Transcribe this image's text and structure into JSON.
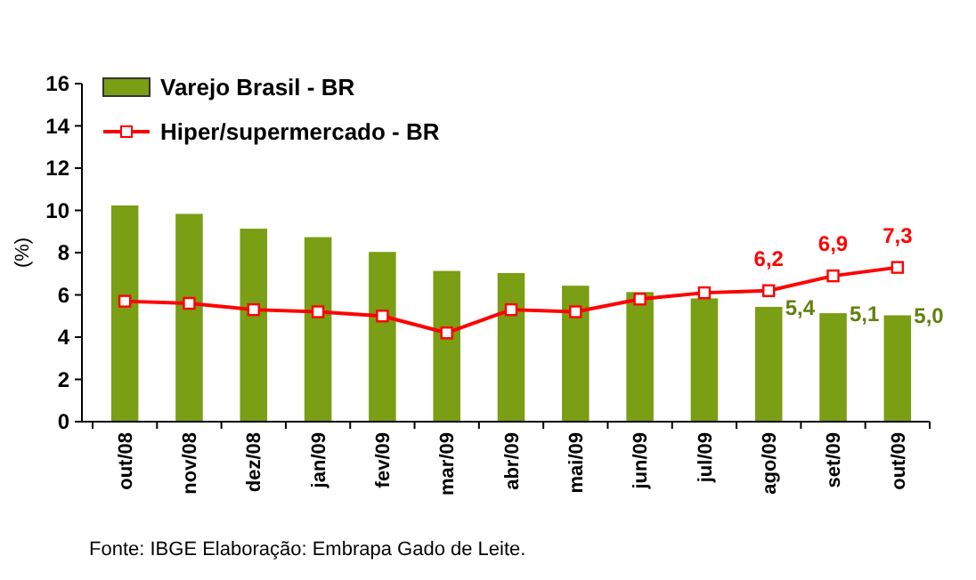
{
  "chart_data": {
    "type": "bar",
    "ylabel": "(%)",
    "categories": [
      "out/08",
      "nov/08",
      "dez/08",
      "jan/09",
      "fev/09",
      "mar/09",
      "abr/09",
      "mai/09",
      "jun/09",
      "jul/09",
      "ago/09",
      "set/09",
      "out/09"
    ],
    "series": [
      {
        "name": "Varejo Brasil - BR",
        "color": "#7a9e14",
        "values": [
          10.2,
          9.8,
          9.1,
          8.7,
          8.0,
          7.1,
          7.0,
          6.4,
          6.1,
          5.8,
          5.4,
          5.1,
          5.0
        ],
        "value_labels": [
          null,
          null,
          null,
          null,
          null,
          null,
          null,
          null,
          null,
          null,
          "5,4",
          "5,1",
          "5,0"
        ]
      },
      {
        "name": "Hiper/supermercado - BR",
        "type": "line",
        "color": "#ff0000",
        "marker": "square",
        "values": [
          5.7,
          5.6,
          5.3,
          5.2,
          5.0,
          4.2,
          5.3,
          5.2,
          5.8,
          6.1,
          6.2,
          6.9,
          7.3
        ],
        "value_labels": [
          null,
          null,
          null,
          null,
          null,
          null,
          null,
          null,
          null,
          null,
          "6,2",
          "6,9",
          "7,3"
        ]
      }
    ],
    "ylim": [
      0,
      16
    ],
    "yticks": [
      0,
      2,
      4,
      6,
      8,
      10,
      12,
      14,
      16
    ],
    "legend": "top left",
    "grid": false,
    "annotations": [
      "Fonte: IBGE Elaboração: Embrapa Gado de Leite."
    ]
  }
}
